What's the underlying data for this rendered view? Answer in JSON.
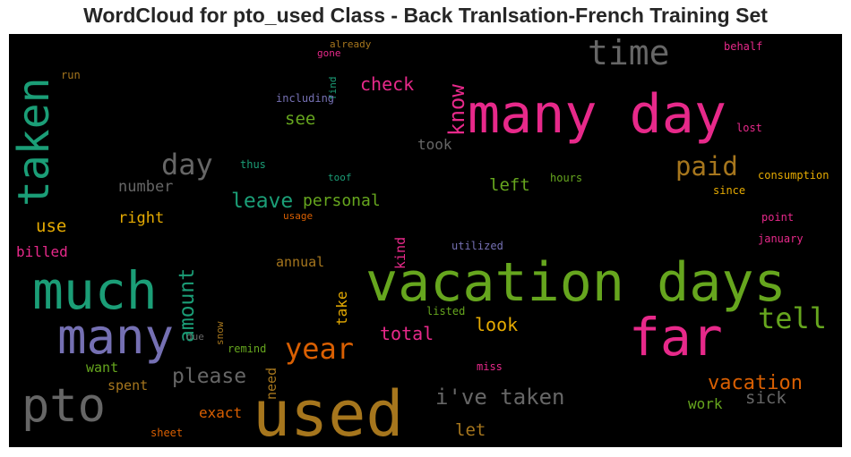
{
  "title": "WordCloud for pto_used Class - Back Tranlsation-French Training Set",
  "words": [
    {
      "id": "vacation-days",
      "text": "vacation days",
      "color": "#66a61e"
    },
    {
      "id": "used",
      "text": "used",
      "color": "#a6761d"
    },
    {
      "id": "many-day",
      "text": "many day",
      "color": "#e7298a"
    },
    {
      "id": "much",
      "text": "much",
      "color": "#1b9e77"
    },
    {
      "id": "far",
      "text": "far",
      "color": "#e7298a"
    },
    {
      "id": "many",
      "text": "many",
      "color": "#7570b3"
    },
    {
      "id": "pto",
      "text": "pto",
      "color": "#666666"
    },
    {
      "id": "taken",
      "text": "taken",
      "color": "#1b9e77"
    },
    {
      "id": "time",
      "text": "time",
      "color": "#666666"
    },
    {
      "id": "day",
      "text": "day",
      "color": "#666666"
    },
    {
      "id": "year",
      "text": "year",
      "color": "#d95f02"
    },
    {
      "id": "tell",
      "text": "tell",
      "color": "#66a61e"
    },
    {
      "id": "paid",
      "text": "paid",
      "color": "#a6761d"
    },
    {
      "id": "know",
      "text": "know",
      "color": "#e7298a"
    },
    {
      "id": "ive-taken",
      "text": "i've taken",
      "color": "#666666"
    },
    {
      "id": "amount",
      "text": "amount",
      "color": "#1b9e77"
    },
    {
      "id": "please",
      "text": "please",
      "color": "#666666"
    },
    {
      "id": "vacation",
      "text": "vacation",
      "color": "#d95f02"
    },
    {
      "id": "leave",
      "text": "leave",
      "color": "#1b9e77"
    },
    {
      "id": "check",
      "text": "check",
      "color": "#e7298a"
    },
    {
      "id": "total",
      "text": "total",
      "color": "#e7298a"
    },
    {
      "id": "look",
      "text": "look",
      "color": "#e6ab02"
    },
    {
      "id": "personal",
      "text": "personal",
      "color": "#66a61e"
    },
    {
      "id": "sick",
      "text": "sick",
      "color": "#666666"
    },
    {
      "id": "see",
      "text": "see",
      "color": "#66a61e"
    },
    {
      "id": "left",
      "text": "left",
      "color": "#66a61e"
    },
    {
      "id": "let",
      "text": "let",
      "color": "#a6761d"
    },
    {
      "id": "use",
      "text": "use",
      "color": "#e6ab02"
    },
    {
      "id": "right",
      "text": "right",
      "color": "#e6ab02"
    },
    {
      "id": "number",
      "text": "number",
      "color": "#666666"
    },
    {
      "id": "took",
      "text": "took",
      "color": "#666666"
    },
    {
      "id": "exact",
      "text": "exact",
      "color": "#d95f02"
    },
    {
      "id": "work",
      "text": "work",
      "color": "#66a61e"
    },
    {
      "id": "take",
      "text": "take",
      "color": "#e6ab02"
    },
    {
      "id": "need",
      "text": "need",
      "color": "#a6761d"
    },
    {
      "id": "kind",
      "text": "kind",
      "color": "#e7298a"
    },
    {
      "id": "billed",
      "text": "billed",
      "color": "#e7298a"
    },
    {
      "id": "annual",
      "text": "annual",
      "color": "#a6761d"
    },
    {
      "id": "want",
      "text": "want",
      "color": "#66a61e"
    },
    {
      "id": "spent",
      "text": "spent",
      "color": "#a6761d"
    },
    {
      "id": "already",
      "text": "already",
      "color": "#a6761d"
    },
    {
      "id": "gone",
      "text": "gone",
      "color": "#e7298a"
    },
    {
      "id": "find",
      "text": "find",
      "color": "#1b9e77"
    },
    {
      "id": "behalf",
      "text": "behalf",
      "color": "#e7298a"
    },
    {
      "id": "run",
      "text": "run",
      "color": "#a6761d"
    },
    {
      "id": "including",
      "text": "including",
      "color": "#7570b3"
    },
    {
      "id": "lost",
      "text": "lost",
      "color": "#e7298a"
    },
    {
      "id": "thus",
      "text": "thus",
      "color": "#1b9e77"
    },
    {
      "id": "toof",
      "text": "toof",
      "color": "#1b9e77"
    },
    {
      "id": "hours",
      "text": "hours",
      "color": "#66a61e"
    },
    {
      "id": "consumption",
      "text": "consumption",
      "color": "#e6ab02"
    },
    {
      "id": "since",
      "text": "since",
      "color": "#e6ab02"
    },
    {
      "id": "usage",
      "text": "usage",
      "color": "#d95f02"
    },
    {
      "id": "point",
      "text": "point",
      "color": "#e7298a"
    },
    {
      "id": "utilized",
      "text": "utilized",
      "color": "#7570b3"
    },
    {
      "id": "january",
      "text": "january",
      "color": "#e7298a"
    },
    {
      "id": "snow",
      "text": "snow",
      "color": "#a6761d"
    },
    {
      "id": "listed",
      "text": "listed",
      "color": "#66a61e"
    },
    {
      "id": "due",
      "text": "due",
      "color": "#666666"
    },
    {
      "id": "remind",
      "text": "remind",
      "color": "#66a61e"
    },
    {
      "id": "miss",
      "text": "miss",
      "color": "#e7298a"
    },
    {
      "id": "sheet",
      "text": "sheet",
      "color": "#d95f02"
    }
  ]
}
